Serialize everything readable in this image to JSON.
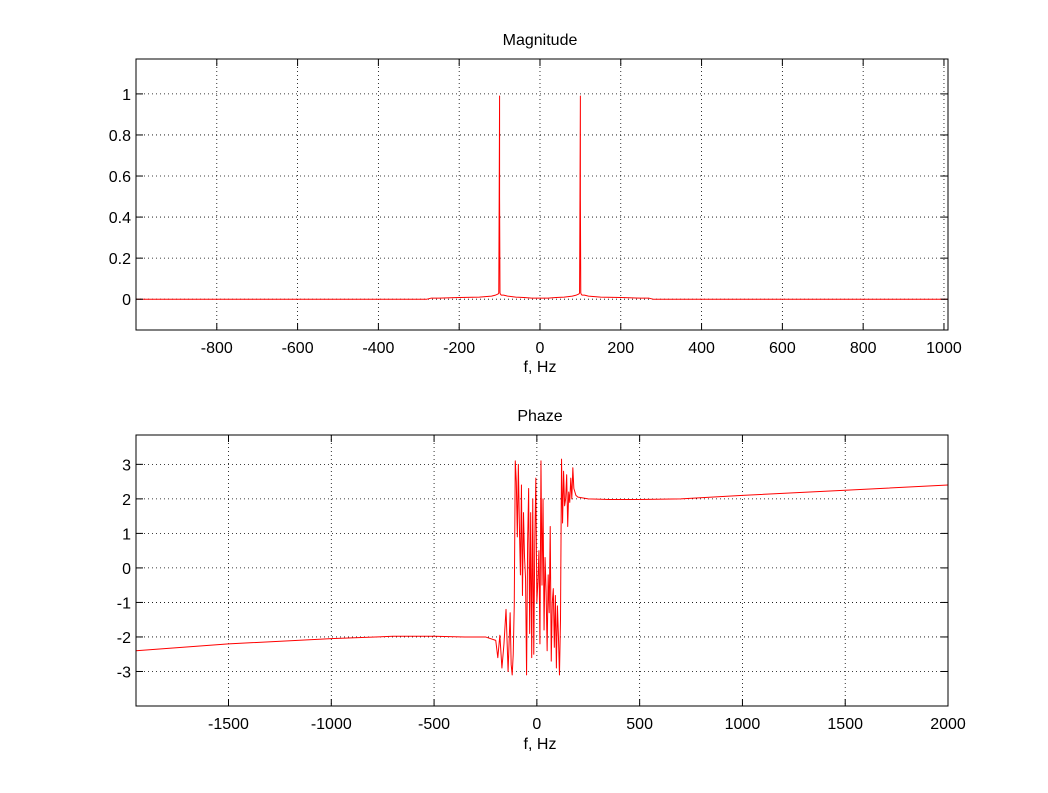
{
  "chart_data": [
    {
      "type": "line",
      "title": "Magnitude",
      "xlabel": "f, Hz",
      "ylabel": "",
      "xlim": [
        -1000,
        1010
      ],
      "ylim": [
        -0.15,
        1.17
      ],
      "xticks": [
        -800,
        -600,
        -400,
        -200,
        0,
        200,
        400,
        600,
        800,
        1000
      ],
      "yticks": [
        0,
        0.2,
        0.4,
        0.6,
        0.8,
        1
      ],
      "xtick_labels": [
        "-800",
        "-600",
        "-400",
        "-200",
        "0",
        "200",
        "400",
        "600",
        "800",
        "1000"
      ],
      "ytick_labels": [
        "0",
        "0.2",
        "0.4",
        "0.6",
        "0.8",
        "1"
      ],
      "grid": true,
      "color": "#ff0000",
      "series": [
        {
          "x": [
            -1000,
            -280,
            -270,
            -250,
            -200,
            -150,
            -120,
            -110,
            -104,
            -102,
            -101,
            -100,
            -100,
            -99,
            -98,
            -96,
            -90,
            -80,
            -60,
            -40,
            -20,
            0,
            20,
            40,
            60,
            80,
            90,
            96,
            98,
            99,
            100,
            100,
            101,
            102,
            104,
            110,
            120,
            150,
            200,
            250,
            270,
            280,
            1010
          ],
          "y": [
            0,
            0,
            0.005,
            0.005,
            0.008,
            0.01,
            0.015,
            0.02,
            0.025,
            0.03,
            0.5,
            0.99,
            0.5,
            0.03,
            0.025,
            0.02,
            0.02,
            0.015,
            0.01,
            0.008,
            0.005,
            0.005,
            0.005,
            0.008,
            0.01,
            0.015,
            0.02,
            0.025,
            0.03,
            0.5,
            0.99,
            0.5,
            0.03,
            0.025,
            0.02,
            0.02,
            0.015,
            0.01,
            0.008,
            0.005,
            0.005,
            0,
            0
          ]
        }
      ]
    },
    {
      "type": "line",
      "title": "Phaze",
      "xlabel": "f, Hz",
      "ylabel": "",
      "xlim": [
        -1950,
        2000
      ],
      "ylim": [
        -4,
        3.85
      ],
      "xticks": [
        -1500,
        -1000,
        -500,
        0,
        500,
        1000,
        1500,
        2000
      ],
      "yticks": [
        -3,
        -2,
        -1,
        0,
        1,
        2,
        3
      ],
      "xtick_labels": [
        "-1500",
        "-1000",
        "-500",
        "0",
        "500",
        "1000",
        "1500",
        "2000"
      ],
      "ytick_labels": [
        "-3",
        "-2",
        "-1",
        "0",
        "1",
        "2",
        "3"
      ],
      "grid": true,
      "color": "#ff0000",
      "series": [
        {
          "x": [
            -1950,
            -1500,
            -1000,
            -700,
            -500,
            -350,
            -250,
            -200,
            -190,
            -180,
            -170,
            -160,
            -150,
            -140,
            -130,
            -125,
            -120,
            -115,
            -110,
            -105,
            -100,
            -95,
            -90,
            -85,
            -80,
            -75,
            -70,
            -65,
            -60,
            -55,
            -50,
            -45,
            -40,
            -35,
            -30,
            -25,
            -20,
            -15,
            -10,
            -5,
            0,
            5,
            10,
            15,
            20,
            25,
            30,
            35,
            40,
            45,
            50,
            55,
            60,
            65,
            70,
            75,
            80,
            85,
            90,
            95,
            100,
            105,
            110,
            115,
            120,
            125,
            130,
            135,
            140,
            145,
            150,
            155,
            160,
            165,
            170,
            175,
            180,
            190,
            200,
            250,
            350,
            500,
            700,
            1000,
            1500,
            2000
          ],
          "y": [
            -2.4,
            -2.2,
            -2.05,
            -1.98,
            -1.98,
            -2.0,
            -2.0,
            -2.1,
            -2.6,
            -1.95,
            -2.9,
            -2.2,
            -1.2,
            -3.0,
            -1.3,
            -2.8,
            -3.1,
            -2.5,
            -1.1,
            3.1,
            2.5,
            0.9,
            3.0,
            1.2,
            -0.2,
            2.4,
            -0.8,
            1.6,
            0.3,
            -0.3,
            -3.1,
            0.7,
            2.3,
            -1.9,
            1.6,
            -2.6,
            2.0,
            -2.5,
            0.8,
            2.6,
            -1.0,
            -0.4,
            0.5,
            -2.2,
            3.1,
            -0.5,
            2.0,
            -1.8,
            0.3,
            -0.7,
            -2.4,
            -0.2,
            -1.3,
            1.2,
            -2.7,
            -1.0,
            -0.6,
            -2.3,
            -0.8,
            -2.9,
            -1.1,
            -2.0,
            -3.1,
            -1.5,
            3.15,
            1.3,
            2.8,
            1.8,
            2.0,
            2.7,
            1.2,
            2.2,
            1.9,
            2.6,
            2.0,
            2.9,
            2.3,
            2.1,
            2.05,
            2.0,
            1.98,
            1.98,
            2.0,
            2.1,
            2.25,
            2.4
          ]
        }
      ]
    }
  ]
}
